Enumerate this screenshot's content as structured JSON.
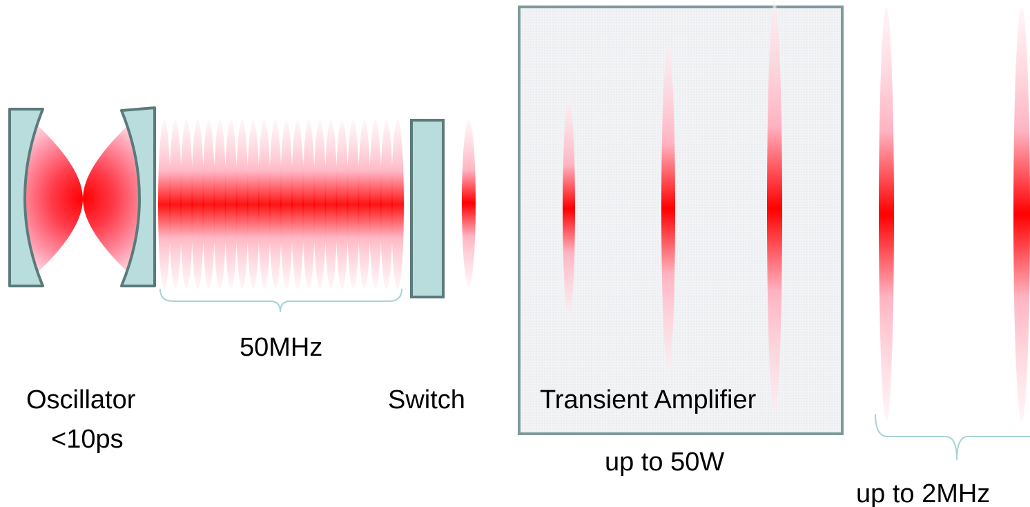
{
  "labels": {
    "rep_rate": "50MHz",
    "oscillator": "Oscillator",
    "pulse_width": "<10ps",
    "switch": "Switch",
    "amplifier": "Transient Amplifier",
    "power": "up to 50W",
    "output_rate": "up to 2MHz"
  },
  "colors": {
    "beam": "#ff0000",
    "optic_fill": "#b9dcdd",
    "optic_stroke": "#5b7a7a",
    "amplifier_fill": "#f3f5f7",
    "amplifier_stroke": "#7f9a9a",
    "brace": "#a6d3d3"
  },
  "icons": {
    "oscillator_mirrors": "concave-mirror-pair",
    "switch": "pulse-picker-plate",
    "pulses": "red-pulse-ellipse"
  },
  "diagram": {
    "pulse_train_count": 22
  }
}
